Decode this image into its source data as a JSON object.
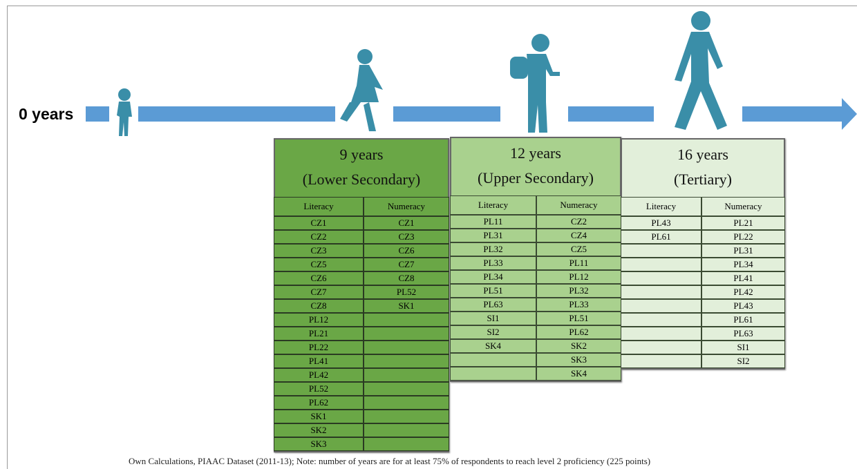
{
  "timeline": {
    "start_label": "0 years"
  },
  "panels": [
    {
      "title": [
        "9 years",
        "(Lower Secondary)"
      ],
      "headers": [
        "Literacy",
        "Numeracy"
      ],
      "columns": [
        [
          "CZ1",
          "CZ2",
          "CZ3",
          "CZ5",
          "CZ6",
          "CZ7",
          "CZ8",
          "PL12",
          "PL21",
          "PL22",
          "PL41",
          "PL42",
          "PL52",
          "PL62",
          "SK1",
          "SK2",
          "SK3"
        ],
        [
          "CZ1",
          "CZ3",
          "CZ6",
          "CZ7",
          "CZ8",
          "PL52",
          "SK1"
        ]
      ]
    },
    {
      "title": [
        "12 years",
        "(Upper Secondary)"
      ],
      "headers": [
        "Literacy",
        "Numeracy"
      ],
      "columns": [
        [
          "PL11",
          "PL31",
          "PL32",
          "PL33",
          "PL34",
          "PL51",
          "PL63",
          "SI1",
          "SI2",
          "SK4"
        ],
        [
          "CZ2",
          "CZ4",
          "CZ5",
          "PL11",
          "PL12",
          "PL32",
          "PL33",
          "PL51",
          "PL62",
          "SK2",
          "SK3",
          "SK4"
        ]
      ]
    },
    {
      "title": [
        "16 years",
        "(Tertiary)"
      ],
      "headers": [
        "Literacy",
        "Numeracy"
      ],
      "columns": [
        [
          "PL43",
          "PL61"
        ],
        [
          "PL21",
          "PL22",
          "PL31",
          "PL34",
          "PL41",
          "PL42",
          "PL43",
          "PL61",
          "PL63",
          "SI1",
          "SI2"
        ]
      ]
    }
  ],
  "footer": "Own Calculations,  PIAAC Dataset (2011-13); Note: number of years are for at least 75% of respondents to reach level 2 proficiency  (225 points)"
}
